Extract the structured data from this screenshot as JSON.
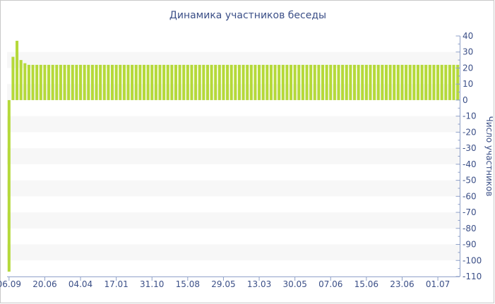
{
  "chart_data": {
    "type": "bar",
    "title": "Динамика участников беседы",
    "ylabel": "Число участников",
    "xlabel": "",
    "ylim": [
      -110,
      40
    ],
    "yticks": [
      40,
      30,
      20,
      10,
      0,
      -10,
      -20,
      -30,
      -40,
      -50,
      -60,
      -70,
      -80,
      -90,
      -100,
      -110
    ],
    "x_tick_labels": [
      "06.09",
      "20.06",
      "04.04",
      "17.01",
      "31.10",
      "15.08",
      "29.05",
      "13.03",
      "30.05",
      "07.06",
      "15.06",
      "23.06",
      "01.07"
    ],
    "x_tick_bar_index": [
      0,
      9,
      18,
      27,
      36,
      45,
      54,
      63,
      72,
      81,
      90,
      99,
      108
    ],
    "bar_color": "#b5d93a",
    "grid_band_color": "#f7f7f7",
    "axis_color": "#8fa1c9",
    "text_color": "#3b4f87",
    "values": [
      -107,
      27,
      37,
      25,
      23,
      22,
      22,
      22,
      22,
      22,
      22,
      22,
      22,
      22,
      22,
      22,
      22,
      22,
      22,
      22,
      22,
      22,
      22,
      22,
      22,
      22,
      22,
      22,
      22,
      22,
      22,
      22,
      22,
      22,
      22,
      22,
      22,
      22,
      22,
      22,
      22,
      22,
      22,
      22,
      22,
      22,
      22,
      22,
      22,
      22,
      22,
      22,
      22,
      22,
      22,
      22,
      22,
      22,
      22,
      22,
      22,
      22,
      22,
      22,
      22,
      22,
      22,
      22,
      22,
      22,
      22,
      22,
      22,
      22,
      22,
      22,
      22,
      22,
      22,
      22,
      22,
      22,
      22,
      22,
      22,
      22,
      22,
      22,
      22,
      22,
      22,
      22,
      22,
      22,
      22,
      22,
      22,
      22,
      22,
      22,
      22,
      22,
      22,
      22,
      22,
      22,
      22,
      22,
      22,
      22,
      22,
      22,
      22,
      22
    ]
  }
}
